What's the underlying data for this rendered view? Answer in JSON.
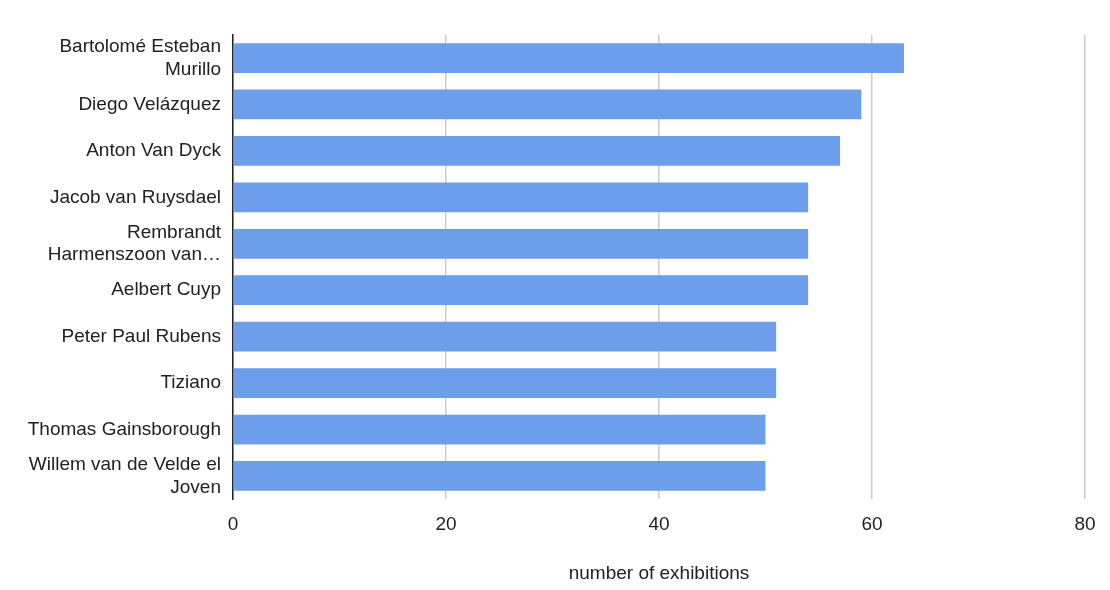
{
  "chart_data": {
    "type": "bar",
    "orientation": "horizontal",
    "xlabel": "number of exhibitions",
    "categories": [
      "Bartolomé Esteban Murillo",
      "Diego Velázquez",
      "Anton Van Dyck",
      "Jacob van Ruysdael",
      "Rembrandt Harmenszoon van…",
      "Aelbert Cuyp",
      "Peter Paul Rubens",
      "Tiziano",
      "Thomas Gainsborough",
      "Willem van de Velde el Joven"
    ],
    "values": [
      63,
      59,
      57,
      54,
      54,
      54,
      51,
      51,
      50,
      50
    ],
    "color": "#6d9eeb",
    "xlim": [
      0,
      80
    ],
    "xticks": [
      0,
      20,
      40,
      60,
      80
    ],
    "grid": "x",
    "legend": false
  }
}
